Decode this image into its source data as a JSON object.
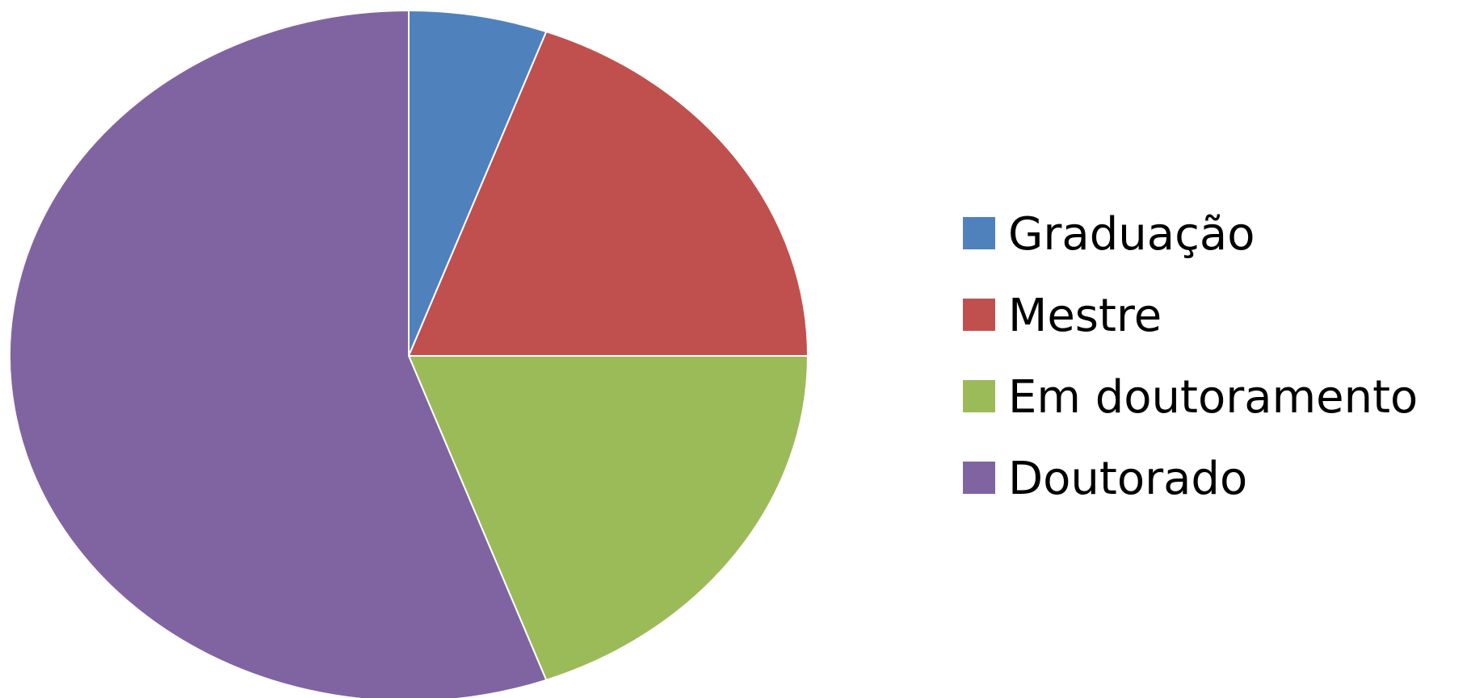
{
  "chart_data": {
    "type": "pie",
    "title": "",
    "start_angle_deg": 0,
    "direction": "clockwise",
    "slices": [
      {
        "label": "Graduação",
        "value": 5.6,
        "color": "#4F81BD"
      },
      {
        "label": "Mestre",
        "value": 19.4,
        "color": "#C0504D"
      },
      {
        "label": "Em doutoramento",
        "value": 19.4,
        "color": "#9BBB59"
      },
      {
        "label": "Doutorado",
        "value": 55.6,
        "color": "#8064A2"
      }
    ],
    "legend": {
      "placement": "right",
      "entries": [
        "Graduação",
        "Mestre",
        "Em doutoramento",
        "Doutorado"
      ]
    }
  }
}
